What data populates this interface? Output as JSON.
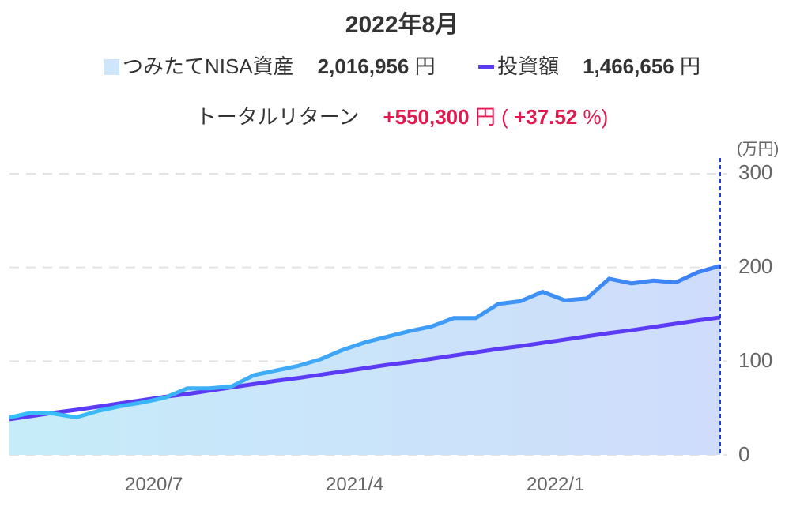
{
  "header": {
    "title": "2022年8月",
    "asset_label": "つみたてNISA資産",
    "asset_value": "2,016,956",
    "invest_label": "投資額",
    "invest_value": "1,466,656",
    "currency": "円",
    "return_label": "トータルリターン",
    "return_value": "+550,300",
    "return_pct_open": "(",
    "return_pct": "+37.52",
    "return_pct_unit": "%)"
  },
  "colors": {
    "asset_line": "#3d8ff5",
    "asset_line_start": "#36c0f8",
    "asset_fill": "#cfe6fa",
    "invest_line": "#5b3bf5",
    "return_red": "#e0194f",
    "cursor_line": "#1a3fe0"
  },
  "axis": {
    "unit": "(万円)",
    "y_ticks": [
      "300",
      "200",
      "100",
      "0"
    ],
    "x_ticks": [
      "2020/7",
      "2021/4",
      "2022/1"
    ]
  },
  "chart_data": {
    "type": "area",
    "title": "2022年8月",
    "xlabel": "",
    "ylabel": "万円",
    "ylim": [
      0,
      300
    ],
    "grid": true,
    "legend_position": "top",
    "x_tick_labels": [
      "2020/7",
      "2021/4",
      "2022/1"
    ],
    "x": [
      "2019/12",
      "2020/1",
      "2020/2",
      "2020/3",
      "2020/4",
      "2020/5",
      "2020/6",
      "2020/7",
      "2020/8",
      "2020/9",
      "2020/10",
      "2020/11",
      "2020/12",
      "2021/1",
      "2021/2",
      "2021/3",
      "2021/4",
      "2021/5",
      "2021/6",
      "2021/7",
      "2021/8",
      "2021/9",
      "2021/10",
      "2021/11",
      "2021/12",
      "2022/1",
      "2022/2",
      "2022/3",
      "2022/4",
      "2022/5",
      "2022/6",
      "2022/7",
      "2022/8"
    ],
    "series": [
      {
        "name": "つみたてNISA資産",
        "type": "area",
        "values": [
          40,
          45,
          44,
          40,
          47,
          52,
          56,
          61,
          71,
          71,
          73,
          85,
          90,
          95,
          102,
          112,
          120,
          126,
          132,
          137,
          146,
          146,
          161,
          164,
          174,
          165,
          167,
          188,
          183,
          186,
          184,
          195,
          201.7
        ]
      },
      {
        "name": "投資額",
        "type": "line",
        "values": [
          38,
          41.5,
          45,
          48,
          51.5,
          55,
          58.5,
          62,
          65,
          68.5,
          72,
          75.5,
          79,
          82,
          85.5,
          89,
          92.5,
          96,
          99,
          102.5,
          106,
          109.5,
          113,
          116,
          119.5,
          123,
          126.5,
          130,
          133,
          136.5,
          140,
          143.5,
          146.7
        ]
      }
    ],
    "annotations": [
      {
        "type": "vertical-dotted-line",
        "x": "2022/8"
      }
    ],
    "summary": {
      "asset": 2016956,
      "invested": 1466656,
      "total_return": 550300,
      "return_pct": 37.52
    }
  }
}
